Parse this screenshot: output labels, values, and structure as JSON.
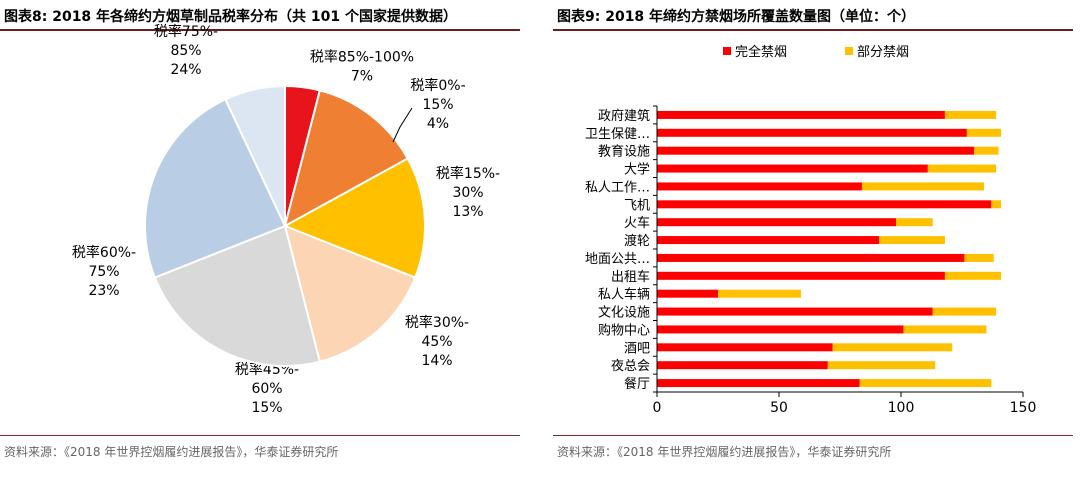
{
  "left": {
    "title": "图表8:   2018 年各缔约方烟草制品税率分布（共 101 个国家提供数据）",
    "source": "资料来源：《2018 年世界控烟履约进展报告》，华泰证券研究所"
  },
  "right": {
    "title": "图表9:   2018 年缔约方禁烟场所覆盖数量图（单位：个）",
    "source": "资料来源：《2018 年世界控烟履约进展报告》，华泰证券研究所"
  },
  "chart_data": [
    {
      "type": "pie",
      "title": "2018 年各缔约方烟草制品税率分布（共 101 个国家提供数据）",
      "slices": [
        {
          "label": [
            "税率0%-",
            "15%",
            "4%"
          ],
          "value": 4,
          "color": "#e8141b"
        },
        {
          "label": [
            "税率15%-",
            "30%",
            "13%"
          ],
          "value": 13,
          "color": "#ef7f33"
        },
        {
          "label": [
            "税率30%-",
            "45%",
            "14%"
          ],
          "value": 14,
          "color": "#ffc000"
        },
        {
          "label": [
            "税率45%-",
            "60%",
            "15%"
          ],
          "value": 15,
          "color": "#fcd5b5"
        },
        {
          "label": [
            "税率60%-",
            "75%",
            "23%"
          ],
          "value": 23,
          "color": "#d9d9d9"
        },
        {
          "label": [
            "税率75%-",
            "85%",
            "24%"
          ],
          "value": 24,
          "color": "#b9cde5"
        },
        {
          "label": [
            "税率85%-100%",
            "7%"
          ],
          "value": 7,
          "color": "#dce6f2"
        }
      ]
    },
    {
      "type": "bar",
      "orientation": "horizontal",
      "stacked": true,
      "title": "2018 年缔约方禁烟场所覆盖数量图（单位：个）",
      "legend_position": "top",
      "categories": [
        "政府建筑",
        "卫生保健…",
        "教育设施",
        "大学",
        "私人工作…",
        "飞机",
        "火车",
        "渡轮",
        "地面公共…",
        "出租车",
        "私人车辆",
        "文化设施",
        "购物中心",
        "酒吧",
        "夜总会",
        "餐厅"
      ],
      "series": [
        {
          "name": "完全禁烟",
          "color": "#ff0000",
          "values": [
            118,
            127,
            130,
            111,
            84,
            137,
            98,
            91,
            126,
            118,
            25,
            113,
            101,
            72,
            70,
            83
          ]
        },
        {
          "name": "部分禁烟",
          "color": "#ffc000",
          "values": [
            21,
            14,
            10,
            28,
            50,
            4,
            15,
            27,
            12,
            23,
            34,
            26,
            34,
            49,
            44,
            54
          ]
        }
      ],
      "xlim": [
        0,
        150
      ],
      "xticks": [
        0,
        50,
        100,
        150
      ],
      "grid": false
    }
  ]
}
